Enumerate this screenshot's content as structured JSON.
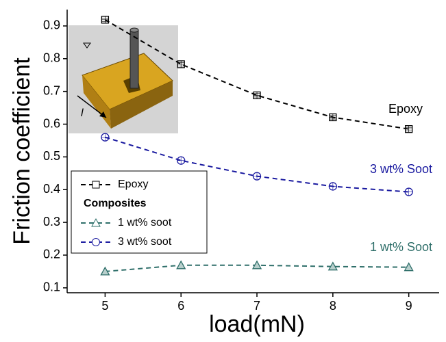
{
  "chart_data": {
    "type": "line",
    "x_label": "load(mN)",
    "y_label": "Friction coefficient",
    "x": [
      5,
      6,
      7,
      8,
      9
    ],
    "series": [
      {
        "name": "Epoxy",
        "color": "#000000",
        "marker": "square",
        "values": [
          0.919,
          0.783,
          0.688,
          0.621,
          0.585
        ]
      },
      {
        "name": "1 wt% soot",
        "color": "#2f6f6a",
        "marker": "triangle",
        "values": [
          0.15,
          0.169,
          0.169,
          0.165,
          0.163
        ]
      },
      {
        "name": "3 wt% soot",
        "color": "#1a1aa0",
        "marker": "circle",
        "values": [
          0.56,
          0.489,
          0.441,
          0.41,
          0.393
        ]
      }
    ],
    "legend_group_title": "Composites",
    "annotations": [
      {
        "text": "Epoxy",
        "color": "#000000"
      },
      {
        "text": "3 wt% Soot",
        "color": "#1a1aa0"
      },
      {
        "text": "1 wt% Soot",
        "color": "#2f6f6a"
      }
    ],
    "inset_label": "l",
    "xlim": [
      4.5,
      9.4
    ],
    "ylim": [
      0.085,
      0.95
    ],
    "xticks": [
      5,
      6,
      7,
      8,
      9
    ],
    "yticks": [
      0.1,
      0.2,
      0.3,
      0.4,
      0.5,
      0.6,
      0.7,
      0.8,
      0.9
    ]
  }
}
